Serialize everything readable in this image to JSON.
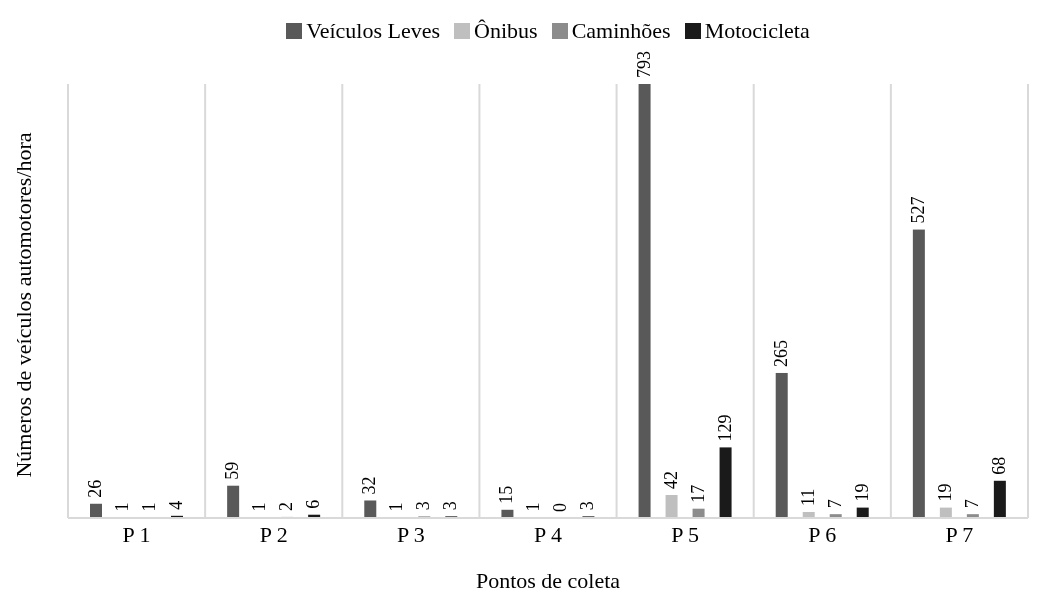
{
  "chart_data": {
    "type": "bar",
    "xlabel": "Pontos de coleta",
    "ylabel": "Números de veículos automotores/hora",
    "categories": [
      "P 1",
      "P 2",
      "P 3",
      "P 4",
      "P 5",
      "P 6",
      "P 7"
    ],
    "series": [
      {
        "name": "Veículos Leves",
        "color": "#595959",
        "values": [
          26,
          59,
          32,
          15,
          793,
          265,
          527
        ]
      },
      {
        "name": "Ônibus",
        "color": "#bfbfbf",
        "values": [
          1,
          1,
          1,
          1,
          42,
          11,
          19
        ]
      },
      {
        "name": "Caminhões",
        "color": "#8c8c8c",
        "values": [
          1,
          2,
          3,
          0,
          17,
          7,
          7
        ]
      },
      {
        "name": "Motocicleta",
        "color": "#1a1a1a",
        "values": [
          4,
          6,
          3,
          3,
          129,
          19,
          68
        ]
      }
    ],
    "data_labels": true,
    "grid": "x",
    "legend": "top"
  }
}
